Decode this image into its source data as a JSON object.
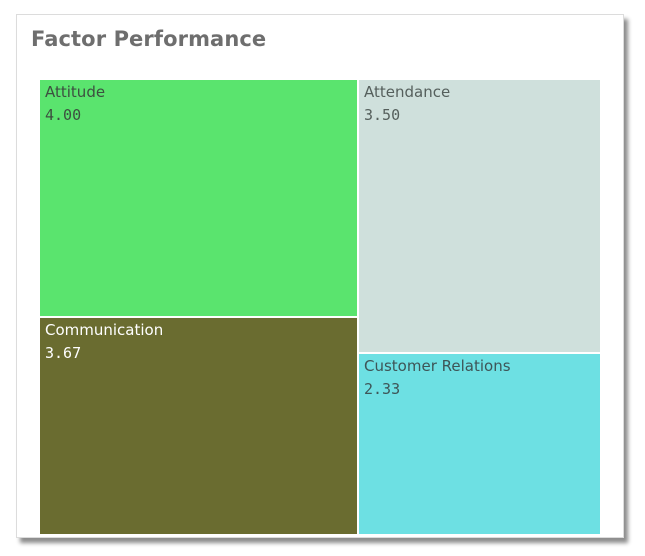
{
  "title": "Factor Performance",
  "chart_data": {
    "type": "treemap",
    "title": "Factor Performance",
    "items": [
      {
        "name": "Attitude",
        "value": 4.0,
        "display": "4.00",
        "color": "#5ae46e",
        "text_color": "#3d4f40"
      },
      {
        "name": "Attendance",
        "value": 3.5,
        "display": "3.50",
        "color": "#cfe0dc",
        "text_color": "#555f5c"
      },
      {
        "name": "Communication",
        "value": 3.67,
        "display": "3.67",
        "color": "#6a6c30",
        "text_color": "#ffffff"
      },
      {
        "name": "Customer Relations",
        "value": 2.33,
        "display": "2.33",
        "color": "#6de0e3",
        "text_color": "#3e5557"
      }
    ]
  }
}
